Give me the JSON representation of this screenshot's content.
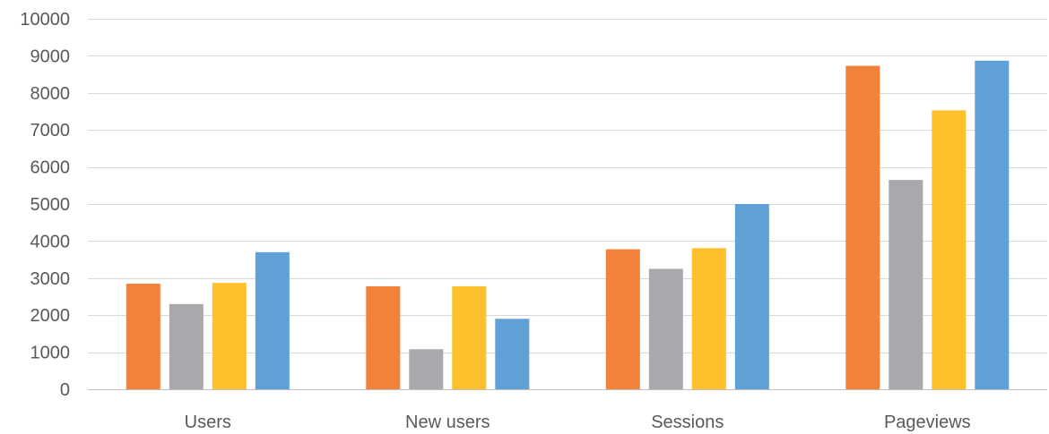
{
  "chart_data": {
    "type": "bar",
    "categories": [
      "Users",
      "New users",
      "Sessions",
      "Pageviews"
    ],
    "series": [
      {
        "color": "#f28139",
        "values": [
          2850,
          2780,
          3780,
          8730
        ]
      },
      {
        "color": "#a9a9ad",
        "values": [
          2300,
          1080,
          3250,
          5650
        ]
      },
      {
        "color": "#fec02c",
        "values": [
          2870,
          2780,
          3810,
          7530
        ]
      },
      {
        "color": "#5fa0d6",
        "values": [
          3700,
          1900,
          5000,
          8870
        ]
      }
    ],
    "title": "",
    "xlabel": "",
    "ylabel": "",
    "ylim": [
      0,
      10000
    ],
    "yticks": [
      0,
      1000,
      2000,
      3000,
      4000,
      5000,
      6000,
      7000,
      8000,
      9000,
      10000
    ],
    "grid": true,
    "legend": "none"
  }
}
